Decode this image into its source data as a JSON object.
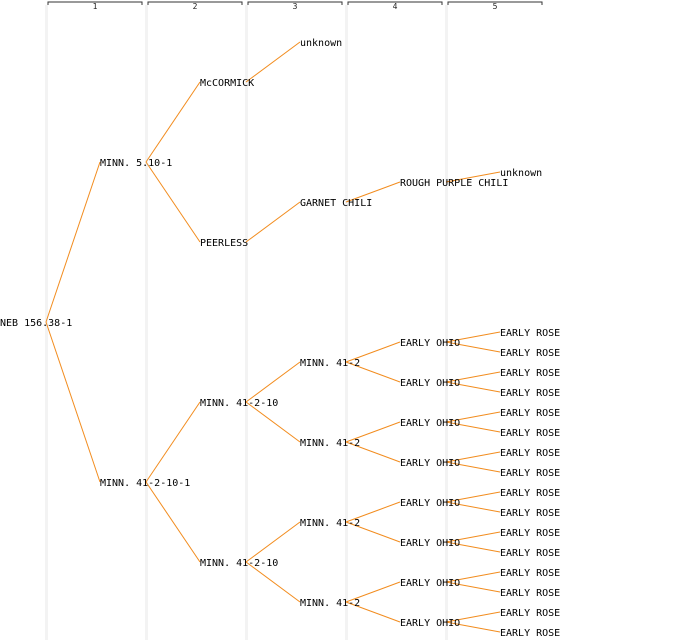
{
  "generations": [
    "1",
    "2",
    "3",
    "4",
    "5"
  ],
  "colors": {
    "edge": "#f28c1e",
    "column_shade": "#f3f3f3",
    "text": "#000000"
  },
  "tree": {
    "label": "NEB 156.38-1",
    "children": [
      {
        "label": "MINN. 5.10-1",
        "children": [
          {
            "label": "McCORMICK",
            "children": [
              {
                "label": "unknown",
                "children": []
              }
            ]
          },
          {
            "label": "PEERLESS",
            "children": [
              {
                "label": "GARNET CHILI",
                "children": [
                  {
                    "label": "ROUGH PURPLE CHILI",
                    "children": [
                      {
                        "label": "unknown",
                        "children": []
                      }
                    ]
                  }
                ]
              }
            ]
          }
        ]
      },
      {
        "label": "MINN. 41-2-10-1",
        "children": [
          {
            "label": "MINN. 41-2-10",
            "children": [
              {
                "label": "MINN. 41-2",
                "children": [
                  {
                    "label": "EARLY OHIO",
                    "children": [
                      {
                        "label": "EARLY ROSE",
                        "children": []
                      },
                      {
                        "label": "EARLY ROSE",
                        "children": []
                      }
                    ]
                  },
                  {
                    "label": "EARLY OHIO",
                    "children": [
                      {
                        "label": "EARLY ROSE",
                        "children": []
                      },
                      {
                        "label": "EARLY ROSE",
                        "children": []
                      }
                    ]
                  }
                ]
              },
              {
                "label": "MINN. 41-2",
                "children": [
                  {
                    "label": "EARLY OHIO",
                    "children": [
                      {
                        "label": "EARLY ROSE",
                        "children": []
                      },
                      {
                        "label": "EARLY ROSE",
                        "children": []
                      }
                    ]
                  },
                  {
                    "label": "EARLY OHIO",
                    "children": [
                      {
                        "label": "EARLY ROSE",
                        "children": []
                      },
                      {
                        "label": "EARLY ROSE",
                        "children": []
                      }
                    ]
                  }
                ]
              }
            ]
          },
          {
            "label": "MINN. 41-2-10",
            "children": [
              {
                "label": "MINN. 41-2",
                "children": [
                  {
                    "label": "EARLY OHIO",
                    "children": [
                      {
                        "label": "EARLY ROSE",
                        "children": []
                      },
                      {
                        "label": "EARLY ROSE",
                        "children": []
                      }
                    ]
                  },
                  {
                    "label": "EARLY OHIO",
                    "children": [
                      {
                        "label": "EARLY ROSE",
                        "children": []
                      },
                      {
                        "label": "EARLY ROSE",
                        "children": []
                      }
                    ]
                  }
                ]
              },
              {
                "label": "MINN. 41-2",
                "children": [
                  {
                    "label": "EARLY OHIO",
                    "children": [
                      {
                        "label": "EARLY ROSE",
                        "children": []
                      },
                      {
                        "label": "EARLY ROSE",
                        "children": []
                      }
                    ]
                  },
                  {
                    "label": "EARLY OHIO",
                    "children": [
                      {
                        "label": "EARLY ROSE",
                        "children": []
                      },
                      {
                        "label": "EARLY ROSE",
                        "children": []
                      }
                    ]
                  }
                ]
              }
            ]
          }
        ]
      }
    ]
  }
}
